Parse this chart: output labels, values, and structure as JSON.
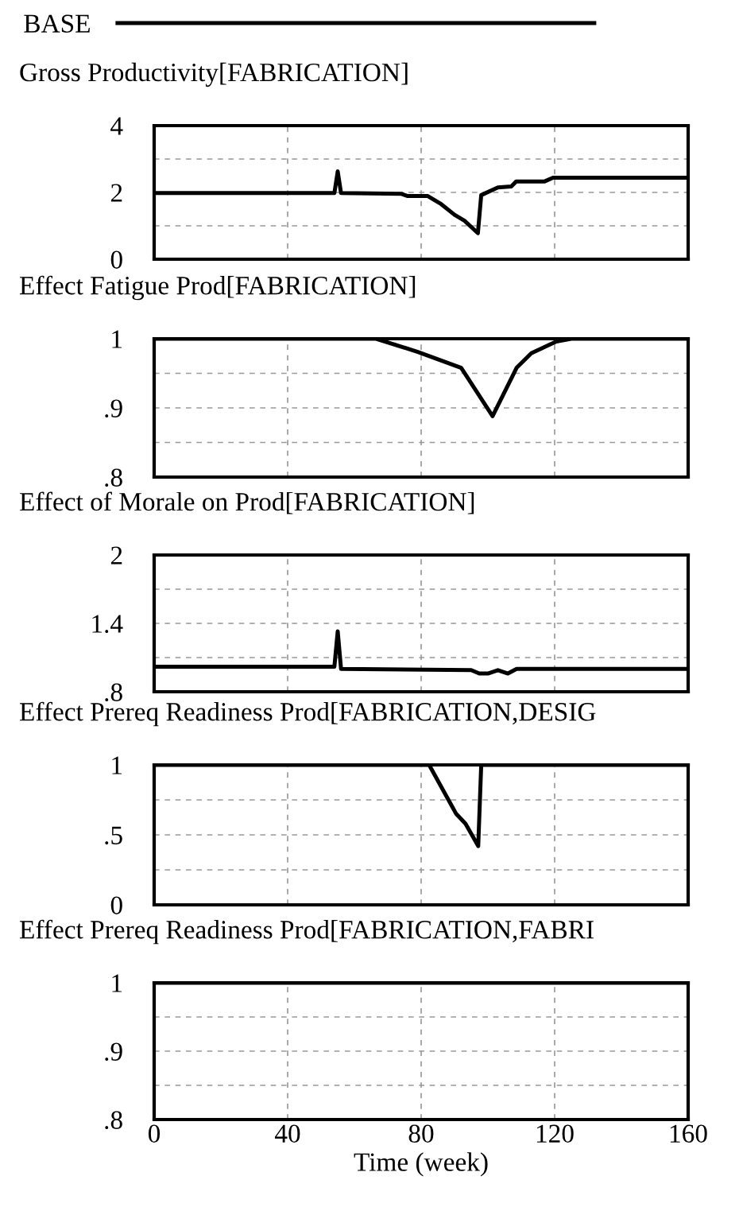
{
  "chart_data": [
    {
      "type": "line",
      "title": "Gross Productivity[FABRICATION]",
      "legend": "top",
      "grid": true,
      "tick_labels": "y",
      "line_style": "solid",
      "series": [
        {
          "name": "BASE",
          "color": "#000000",
          "x": [
            0,
            54,
            55,
            56,
            74,
            76,
            82,
            86,
            90,
            93,
            97,
            98,
            103,
            107,
            108.5,
            117,
            119.5,
            160
          ],
          "values": [
            1.98,
            1.98,
            2.63,
            1.98,
            1.96,
            1.89,
            1.89,
            1.65,
            1.33,
            1.15,
            0.78,
            1.92,
            2.15,
            2.18,
            2.33,
            2.33,
            2.44,
            2.44
          ]
        }
      ],
      "xlim": [
        0,
        160
      ],
      "xticks": [
        {
          "value": 0,
          "label": null
        },
        {
          "value": 40,
          "label": null
        },
        {
          "value": 80,
          "label": null
        },
        {
          "value": 120,
          "label": null
        },
        {
          "value": 160,
          "label": null
        }
      ],
      "ylim": [
        0,
        4
      ],
      "yticks": [
        0,
        {
          "value": 1,
          "label": null
        },
        2,
        {
          "value": 3,
          "label": null
        },
        4
      ]
    },
    {
      "type": "line",
      "title": "Effect Fatigue Prod[FABRICATION]",
      "grid": true,
      "tick_labels": "y",
      "line_style": "solid",
      "series": [
        {
          "color": "#000000",
          "x": [
            0,
            66.5,
            79,
            92,
            101.4,
            108.6,
            113,
            120.5,
            125,
            160
          ],
          "values": [
            1,
            1,
            0.981,
            0.958,
            0.888,
            0.958,
            0.979,
            0.996,
            1,
            1
          ]
        }
      ],
      "xlim": [
        0,
        160
      ],
      "xticks": [
        {
          "value": 0,
          "label": null
        },
        {
          "value": 40,
          "label": null
        },
        {
          "value": 80,
          "label": null
        },
        {
          "value": 120,
          "label": null
        },
        {
          "value": 160,
          "label": null
        }
      ],
      "ylim": [
        0.8,
        1
      ],
      "yticks": [
        {
          "value": 0.8,
          "label": ".8"
        },
        {
          "value": 0.85,
          "label": null
        },
        {
          "value": 0.9,
          "label": ".9"
        },
        {
          "value": 0.95,
          "label": null
        },
        1
      ]
    },
    {
      "type": "line",
      "title": "Effect of Morale on Prod[FABRICATION]",
      "grid": true,
      "tick_labels": "y",
      "line_style": "solid",
      "series": [
        {
          "color": "#000000",
          "x": [
            0,
            54,
            55,
            56,
            95,
            97.4,
            100,
            103,
            106,
            108.6,
            160
          ],
          "values": [
            1.02,
            1.02,
            1.33,
            1.0,
            0.99,
            0.96,
            0.96,
            0.99,
            0.96,
            1.0,
            1.0
          ]
        }
      ],
      "xlim": [
        0,
        160
      ],
      "xticks": [
        {
          "value": 0,
          "label": null
        },
        {
          "value": 40,
          "label": null
        },
        {
          "value": 80,
          "label": null
        },
        {
          "value": 120,
          "label": null
        },
        {
          "value": 160,
          "label": null
        }
      ],
      "ylim": [
        0.8,
        2
      ],
      "yticks": [
        {
          "value": 0.8,
          "label": ".8"
        },
        {
          "value": 1.1,
          "label": null
        },
        1.4,
        {
          "value": 1.7,
          "label": null
        },
        2
      ]
    },
    {
      "type": "line",
      "title": "Effect Prereq Readiness Prod[FABRICATION,DESIG",
      "grid": true,
      "tick_labels": "y",
      "line_style": "solid",
      "series": [
        {
          "color": "#000000",
          "x": [
            0,
            82.4,
            90.5,
            93.3,
            97.1,
            98,
            160
          ],
          "values": [
            1,
            1,
            0.65,
            0.58,
            0.42,
            1,
            1
          ]
        }
      ],
      "xlim": [
        0,
        160
      ],
      "xticks": [
        {
          "value": 0,
          "label": null
        },
        {
          "value": 40,
          "label": null
        },
        {
          "value": 80,
          "label": null
        },
        {
          "value": 120,
          "label": null
        },
        {
          "value": 160,
          "label": null
        }
      ],
      "ylim": [
        0,
        1
      ],
      "yticks": [
        0,
        {
          "value": 0.25,
          "label": null
        },
        {
          "value": 0.5,
          "label": ".5"
        },
        {
          "value": 0.75,
          "label": null
        },
        1
      ]
    },
    {
      "type": "line",
      "title": "Effect Prereq Readiness Prod[FABRICATION,FABRI",
      "xlabel": "Time (week)",
      "grid": true,
      "line_style": "solid",
      "series": [
        {
          "color": "#000000",
          "x": [
            0,
            160
          ],
          "values": [
            1,
            1
          ]
        }
      ],
      "xlim": [
        0,
        160
      ],
      "xticks": [
        0,
        40,
        80,
        120,
        160
      ],
      "ylim": [
        0.8,
        1
      ],
      "yticks": [
        {
          "value": 0.8,
          "label": ".8"
        },
        {
          "value": 0.85,
          "label": null
        },
        {
          "value": 0.9,
          "label": ".9"
        },
        {
          "value": 0.95,
          "label": null
        },
        1
      ]
    }
  ]
}
